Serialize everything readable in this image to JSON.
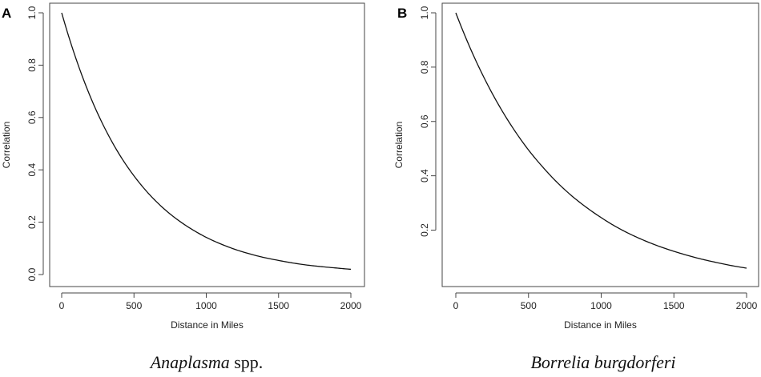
{
  "panels": [
    {
      "letter": "A",
      "caption_italic": "Anaplasma",
      "caption_rest": " spp.",
      "chart_data": {
        "type": "line",
        "xlabel": "Distance in Miles",
        "ylabel": "Correlation",
        "xlim": [
          0,
          2000
        ],
        "ylim": [
          0,
          1
        ],
        "x_ticks": [
          0,
          500,
          1000,
          1500,
          2000
        ],
        "y_ticks": [
          0.0,
          0.2,
          0.4,
          0.6,
          0.8,
          1.0
        ],
        "y_tick_labels": [
          "0.0",
          "0.2",
          "0.4",
          "0.6",
          "0.8",
          "1.0"
        ],
        "grid": false,
        "series": [
          {
            "x": [
              0,
              100,
              200,
              300,
              400,
              500,
              600,
              700,
              800,
              900,
              1000,
              1100,
              1200,
              1300,
              1400,
              1500,
              1600,
              1700,
              1800,
              1900,
              2000
            ],
            "values": [
              1.0,
              0.823,
              0.677,
              0.557,
              0.458,
              0.377,
              0.31,
              0.255,
              0.21,
              0.173,
              0.142,
              0.117,
              0.096,
              0.079,
              0.065,
              0.054,
              0.044,
              0.036,
              0.03,
              0.025,
              0.02
            ]
          }
        ]
      }
    },
    {
      "letter": "B",
      "caption_italic": "Borrelia burgdorferi",
      "caption_rest": "",
      "chart_data": {
        "type": "line",
        "xlabel": "Distance in Miles",
        "ylabel": "Correlation",
        "xlim": [
          0,
          2000
        ],
        "ylim": [
          0.06,
          1
        ],
        "x_ticks": [
          0,
          500,
          1000,
          1500,
          2000
        ],
        "y_ticks": [
          0.2,
          0.4,
          0.6,
          0.8,
          1.0
        ],
        "y_tick_labels": [
          "0.2",
          "0.4",
          "0.6",
          "0.8",
          "1.0"
        ],
        "grid": false,
        "series": [
          {
            "x": [
              0,
              100,
              200,
              300,
              400,
              500,
              600,
              700,
              800,
              900,
              1000,
              1100,
              1200,
              1300,
              1400,
              1500,
              1600,
              1700,
              1800,
              1900,
              2000
            ],
            "values": [
              1.0,
              0.869,
              0.755,
              0.656,
              0.57,
              0.495,
              0.431,
              0.374,
              0.325,
              0.283,
              0.246,
              0.213,
              0.185,
              0.161,
              0.14,
              0.122,
              0.106,
              0.092,
              0.08,
              0.069,
              0.06
            ]
          }
        ]
      }
    }
  ]
}
